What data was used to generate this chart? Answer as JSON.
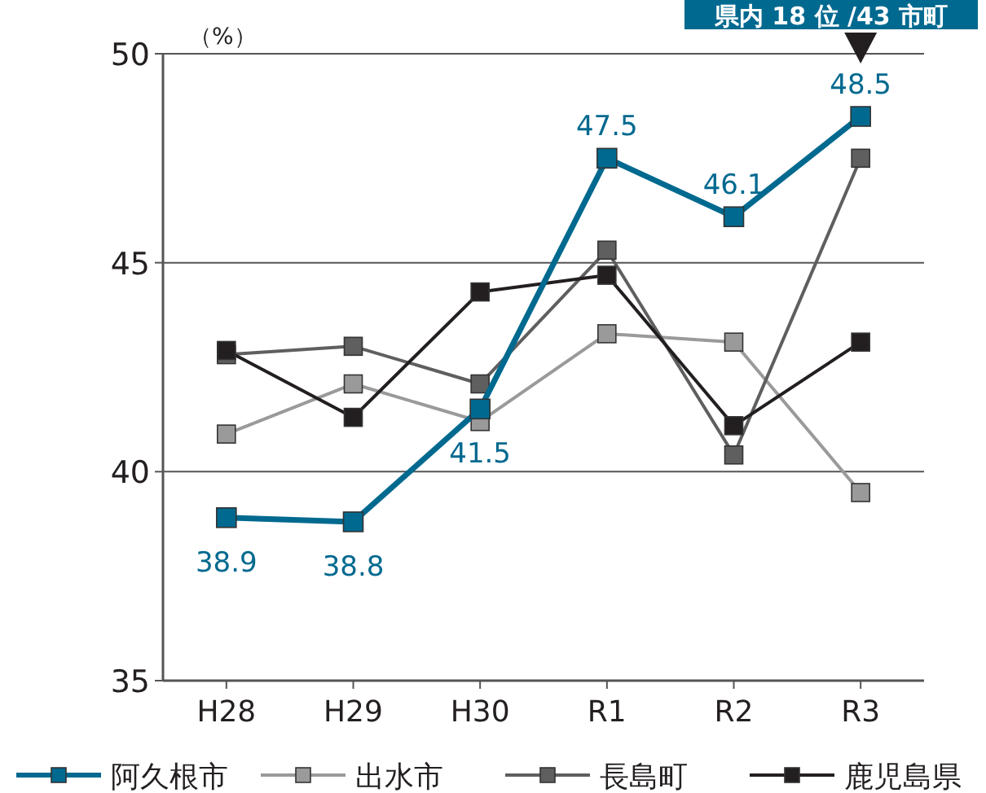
{
  "chart_data": {
    "type": "line",
    "ylabel": "（%）",
    "categories": [
      "H28",
      "H29",
      "H30",
      "R1",
      "R2",
      "R3"
    ],
    "ylim": [
      35,
      50
    ],
    "yticks": [
      35,
      40,
      45,
      50
    ],
    "grid": "y",
    "legend": "bottom",
    "marker": "square",
    "line_style": "solid",
    "annotations": [
      "県内 18 位 /43 市町"
    ],
    "series": [
      {
        "name": "阿久根市",
        "color": "#00698f",
        "values": [
          38.9,
          38.8,
          41.5,
          47.5,
          46.1,
          48.5
        ],
        "value_labels": [
          "38.9",
          "38.8",
          "41.5",
          "47.5",
          "46.1",
          "48.5"
        ]
      },
      {
        "name": "出水市",
        "color": "#9a9a9a",
        "values": [
          40.9,
          42.1,
          41.2,
          43.3,
          43.1,
          39.5
        ]
      },
      {
        "name": "長島町",
        "color": "#5f5f5f",
        "values": [
          42.8,
          43.0,
          42.1,
          45.3,
          40.4,
          47.5
        ]
      },
      {
        "name": "鹿児島県",
        "color": "#231f20",
        "values": [
          42.9,
          41.3,
          44.3,
          44.7,
          41.1,
          43.1
        ]
      }
    ]
  }
}
